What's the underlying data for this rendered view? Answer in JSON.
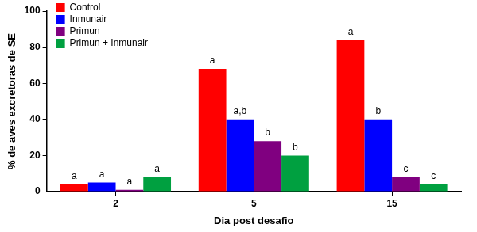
{
  "chart_data": {
    "type": "bar",
    "x_label": "Dia post desafio",
    "y_label": "% de aves excretoras de SE",
    "categories": [
      "2",
      "5",
      "15"
    ],
    "series": [
      {
        "name": "Control",
        "color": "#ff0000",
        "values": [
          4,
          68,
          84
        ],
        "annotations": [
          "a",
          "a",
          "a"
        ]
      },
      {
        "name": "Inmunair",
        "color": "#0000ff",
        "values": [
          5,
          40,
          40
        ],
        "annotations": [
          "a",
          "a,b",
          "b"
        ]
      },
      {
        "name": "Primun",
        "color": "#800080",
        "values": [
          1,
          28,
          8
        ],
        "annotations": [
          "a",
          "b",
          "c"
        ]
      },
      {
        "name": "Primun + Inmunair",
        "color": "#00a040",
        "values": [
          8,
          20,
          4
        ],
        "annotations": [
          "a",
          "b",
          "c"
        ]
      }
    ],
    "ylim": [
      0,
      100
    ],
    "yticks": [
      0,
      20,
      40,
      60,
      80,
      100
    ],
    "grid": false,
    "legend": "upper left"
  }
}
